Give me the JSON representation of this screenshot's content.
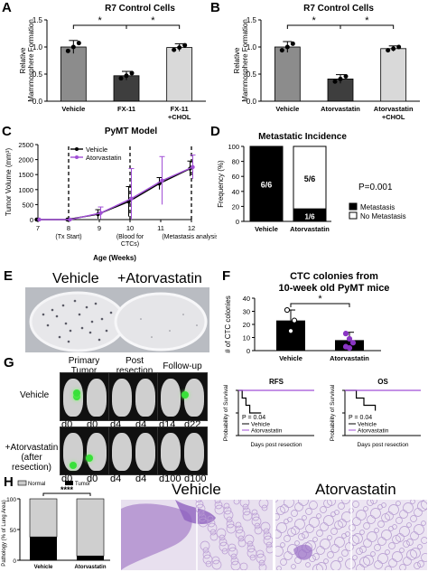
{
  "panels": {
    "A": {
      "label": "A",
      "title": "R7  Control Cells",
      "ylabel": "Relative Mammosphere Formation",
      "yticks": [
        "0.0",
        "0.5",
        "1.0",
        "1.5"
      ],
      "categories": [
        "Vehicle",
        "FX-11",
        "FX-11 +CHOL"
      ],
      "sig": [
        "*",
        "*"
      ]
    },
    "B": {
      "label": "B",
      "title": "R7  Control Cells",
      "ylabel": "Relative Mammosphere Formation",
      "yticks": [
        "0.0",
        "0.5",
        "1.0",
        "1.5"
      ],
      "categories": [
        "Vehicle",
        "Atorvastatin",
        "Atorvastatin +CHOL"
      ],
      "sig": [
        "*",
        "*"
      ]
    },
    "C": {
      "label": "C",
      "title": "PyMT  Model",
      "ylabel": "Tumor Volume (mm³)",
      "xlabel": "Age (Weeks)",
      "yticks": [
        "0",
        "500",
        "1000",
        "1500",
        "2000",
        "2500"
      ],
      "xticks": [
        "7",
        "8",
        "9",
        "10",
        "11",
        "12"
      ],
      "annotations": [
        "(Tx Start)",
        "(Blood for CTCs)",
        "(Metastasis analysis)"
      ],
      "legend": [
        "Vehicle",
        "Atorvastatin"
      ]
    },
    "D": {
      "label": "D",
      "title": "Metastatic Incidence",
      "ylabel": "Frequency (%)",
      "yticks": [
        "0",
        "20",
        "40",
        "60",
        "80",
        "100"
      ],
      "categories": [
        "Vehicle",
        "Atorvastatin"
      ],
      "bar_labels": [
        "6/6",
        "5/6",
        "1/6"
      ],
      "pvalue": "P=0.001",
      "legend": [
        "Metastasis",
        "No Metastasis"
      ]
    },
    "E": {
      "label": "E",
      "captions": [
        "Vehicle",
        "+Atorvastatin"
      ]
    },
    "F": {
      "label": "F",
      "title_line1": "CTC colonies from",
      "title_line2": "10-week old PyMT mice",
      "ylabel": "# of CTC colonies",
      "yticks": [
        "0",
        "10",
        "20",
        "30",
        "40"
      ],
      "categories": [
        "Vehicle",
        "Atorvastatin"
      ],
      "sig": "*"
    },
    "G": {
      "label": "G",
      "col_headers": [
        "Primary Tumor",
        "Post resection",
        "Follow-up"
      ],
      "row_labels": [
        "Vehicle",
        "+Atorvastatin (after resection)"
      ],
      "row1_days": [
        "d0",
        "d0",
        "d4",
        "d4",
        "d14",
        "d22"
      ],
      "row2_days": [
        "d0",
        "d0",
        "d4",
        "d4",
        "d100",
        "d100"
      ],
      "rfs": {
        "title": "RFS",
        "ylabel": "Probability of Survival",
        "xlabel": "Days post resection",
        "pvalue": "P = 0.04",
        "legend": [
          "Vehicle",
          "Atorvastatin"
        ]
      },
      "os": {
        "title": "OS",
        "ylabel": "Probability of Survival",
        "xlabel": "Days post resection",
        "pvalue": "P = 0.04",
        "legend": [
          "Vehicle",
          "Atorvastatin"
        ]
      }
    },
    "H": {
      "label": "H",
      "ylabel": "Pathology (% of Lung Area)",
      "yticks": [
        "0",
        "50",
        "100"
      ],
      "legend": [
        "Normal",
        "Tumor"
      ],
      "sig": "****",
      "categories": [
        "Vehicle",
        "Atorvastatin"
      ],
      "histo_titles": [
        "Vehicle",
        "Atorvastatin"
      ]
    }
  },
  "chart_data": [
    {
      "type": "bar",
      "title": "R7  Control Cells",
      "categories": [
        "Vehicle",
        "FX-11",
        "FX-11 +CHOL"
      ],
      "values": [
        1.0,
        0.47,
        0.99
      ],
      "errors": [
        0.12,
        0.08,
        0.07
      ],
      "ylim": [
        0,
        1.5
      ],
      "colors": [
        "#8c8c8c",
        "#3e3e3e",
        "#d9d9d9"
      ]
    },
    {
      "type": "bar",
      "title": "R7  Control Cells",
      "categories": [
        "Vehicle",
        "Atorvastatin",
        "Atorvastatin +CHOL"
      ],
      "values": [
        1.0,
        0.41,
        0.97
      ],
      "errors": [
        0.1,
        0.08,
        0.05
      ],
      "ylim": [
        0,
        1.5
      ],
      "colors": [
        "#8c8c8c",
        "#3e3e3e",
        "#d9d9d9"
      ]
    },
    {
      "type": "line",
      "title": "PyMT  Model",
      "x": [
        7,
        8,
        9,
        10,
        11,
        12
      ],
      "xlim": [
        7,
        12
      ],
      "ylim": [
        0,
        2500
      ],
      "series": [
        {
          "name": "Vehicle",
          "values": [
            0,
            0,
            180,
            600,
            1200,
            1700
          ],
          "errors": [
            0,
            0,
            150,
            500,
            200,
            250
          ],
          "color": "#000000"
        },
        {
          "name": "Atorvastatin",
          "values": [
            0,
            0,
            220,
            700,
            1300,
            1750
          ],
          "errors": [
            0,
            0,
            200,
            1000,
            800,
            400
          ],
          "color": "#a14fd6"
        }
      ]
    },
    {
      "type": "bar",
      "title": "Metastatic Incidence",
      "categories": [
        "Vehicle",
        "Atorvastatin"
      ],
      "series": [
        {
          "name": "Metastasis",
          "values": [
            100,
            16.7
          ]
        },
        {
          "name": "No Metastasis",
          "values": [
            0,
            83.3
          ]
        }
      ],
      "ylim": [
        0,
        100
      ]
    },
    {
      "type": "bar",
      "title": "CTC colonies from 10-week old PyMT mice",
      "categories": [
        "Vehicle",
        "Atorvastatin"
      ],
      "values": [
        23,
        8
      ],
      "errors": [
        8,
        6
      ],
      "points": [
        [
          31,
          15,
          23
        ],
        [
          13,
          9,
          6,
          3,
          2
        ]
      ],
      "ylim": [
        0,
        40
      ],
      "colors": [
        "#000000",
        "#000000"
      ]
    },
    {
      "type": "line",
      "title": "RFS",
      "ylim": [
        0,
        100
      ],
      "series": [
        {
          "name": "Vehicle",
          "x": [
            0,
            5,
            5,
            10,
            10,
            15,
            15,
            30
          ],
          "values": [
            100,
            100,
            83,
            83,
            67,
            67,
            50,
            50
          ],
          "color": "#000000"
        },
        {
          "name": "Atorvastatin",
          "x": [
            0,
            100
          ],
          "values": [
            100,
            100
          ],
          "color": "#a14fd6"
        }
      ]
    },
    {
      "type": "line",
      "title": "OS",
      "ylim": [
        0,
        100
      ],
      "series": [
        {
          "name": "Vehicle",
          "x": [
            0,
            15,
            15,
            25,
            25,
            40,
            40
          ],
          "values": [
            100,
            100,
            83,
            83,
            67,
            67,
            55
          ],
          "color": "#000000"
        },
        {
          "name": "Atorvastatin",
          "x": [
            0,
            100
          ],
          "values": [
            100,
            100
          ],
          "color": "#a14fd6"
        }
      ]
    },
    {
      "type": "bar",
      "title": "",
      "categories": [
        "Vehicle",
        "Atorvastatin"
      ],
      "series": [
        {
          "name": "Tumor",
          "values": [
            38,
            7
          ]
        },
        {
          "name": "Normal",
          "values": [
            62,
            93
          ]
        }
      ],
      "ylim": [
        0,
        100
      ]
    }
  ]
}
